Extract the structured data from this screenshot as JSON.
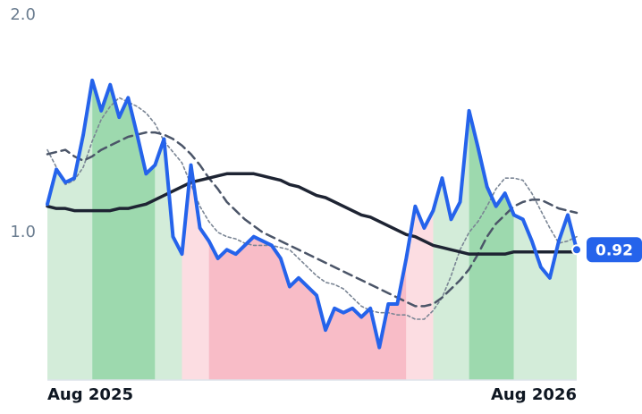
{
  "chart_data": {
    "type": "line",
    "ylim": [
      0.32,
      2.0
    ],
    "yticks": [
      {
        "value": 1,
        "label": "1.0"
      },
      {
        "value": 2,
        "label": "2.0"
      }
    ],
    "xlim": [
      0,
      59
    ],
    "xticks": [
      {
        "value": 0,
        "label": "Aug 2025"
      },
      {
        "value": 59,
        "label": "Aug 2026"
      }
    ],
    "series": [
      {
        "color": "#2563eb",
        "style": "solid",
        "width": 4,
        "values": [
          1.13,
          1.29,
          1.23,
          1.25,
          1.45,
          1.7,
          1.56,
          1.68,
          1.53,
          1.62,
          1.45,
          1.27,
          1.31,
          1.43,
          0.98,
          0.9,
          1.31,
          1.02,
          0.96,
          0.88,
          0.92,
          0.9,
          0.94,
          0.98,
          0.96,
          0.94,
          0.88,
          0.75,
          0.79,
          0.75,
          0.71,
          0.55,
          0.65,
          0.63,
          0.65,
          0.61,
          0.65,
          0.47,
          0.67,
          0.67,
          0.88,
          1.12,
          1.02,
          1.1,
          1.25,
          1.06,
          1.14,
          1.56,
          1.39,
          1.21,
          1.12,
          1.18,
          1.08,
          1.06,
          0.96,
          0.84,
          0.79,
          0.96,
          1.08,
          0.92
        ]
      },
      {
        "color": "#1e2433",
        "style": "solid",
        "width": 3.5,
        "values": [
          1.12,
          1.11,
          1.11,
          1.1,
          1.1,
          1.1,
          1.1,
          1.1,
          1.11,
          1.11,
          1.12,
          1.13,
          1.15,
          1.17,
          1.19,
          1.21,
          1.23,
          1.24,
          1.25,
          1.26,
          1.27,
          1.27,
          1.27,
          1.27,
          1.26,
          1.25,
          1.24,
          1.22,
          1.21,
          1.19,
          1.17,
          1.16,
          1.14,
          1.12,
          1.1,
          1.08,
          1.07,
          1.05,
          1.03,
          1.01,
          0.99,
          0.98,
          0.96,
          0.94,
          0.93,
          0.92,
          0.91,
          0.9,
          0.9,
          0.9,
          0.9,
          0.9,
          0.91,
          0.91,
          0.91,
          0.91,
          0.91,
          0.91,
          0.91,
          0.91
        ]
      },
      {
        "color": "#4b5568",
        "style": "dashed",
        "width": 2.5,
        "values": [
          1.36,
          1.37,
          1.38,
          1.35,
          1.33,
          1.35,
          1.38,
          1.4,
          1.42,
          1.44,
          1.45,
          1.46,
          1.46,
          1.45,
          1.43,
          1.4,
          1.36,
          1.31,
          1.25,
          1.2,
          1.14,
          1.1,
          1.06,
          1.03,
          1.0,
          0.98,
          0.96,
          0.94,
          0.92,
          0.9,
          0.88,
          0.86,
          0.84,
          0.82,
          0.8,
          0.78,
          0.76,
          0.74,
          0.72,
          0.7,
          0.68,
          0.66,
          0.66,
          0.67,
          0.7,
          0.74,
          0.78,
          0.83,
          0.9,
          0.98,
          1.04,
          1.08,
          1.12,
          1.14,
          1.15,
          1.15,
          1.13,
          1.11,
          1.1,
          1.09
        ]
      },
      {
        "color": "#7a8594",
        "style": "dotted",
        "width": 1.6,
        "values": [
          1.38,
          1.3,
          1.22,
          1.24,
          1.3,
          1.42,
          1.52,
          1.58,
          1.62,
          1.6,
          1.58,
          1.55,
          1.5,
          1.42,
          1.37,
          1.32,
          1.22,
          1.12,
          1.05,
          1.0,
          0.98,
          0.97,
          0.95,
          0.94,
          0.94,
          0.94,
          0.93,
          0.92,
          0.88,
          0.84,
          0.8,
          0.77,
          0.76,
          0.74,
          0.7,
          0.66,
          0.64,
          0.63,
          0.63,
          0.62,
          0.62,
          0.6,
          0.6,
          0.64,
          0.7,
          0.8,
          0.92,
          1.0,
          1.05,
          1.12,
          1.2,
          1.25,
          1.25,
          1.24,
          1.18,
          1.1,
          1.02,
          0.95,
          0.96,
          0.98
        ]
      }
    ],
    "zones": [
      {
        "from": 0,
        "to": 5,
        "color": "#d3ecd9"
      },
      {
        "from": 5,
        "to": 12,
        "color": "#9dd9ae"
      },
      {
        "from": 12,
        "to": 15,
        "color": "#d3ecd9"
      },
      {
        "from": 15,
        "to": 18,
        "color": "#fcdde2"
      },
      {
        "from": 18,
        "to": 40,
        "color": "#f8bcc7"
      },
      {
        "from": 40,
        "to": 43,
        "color": "#fcdde2"
      },
      {
        "from": 43,
        "to": 47,
        "color": "#d3ecd9"
      },
      {
        "from": 47,
        "to": 52,
        "color": "#9dd9ae"
      },
      {
        "from": 52,
        "to": 59,
        "color": "#d3ecd9"
      }
    ],
    "annotation": {
      "value": 0.92,
      "label": "0.92"
    }
  }
}
